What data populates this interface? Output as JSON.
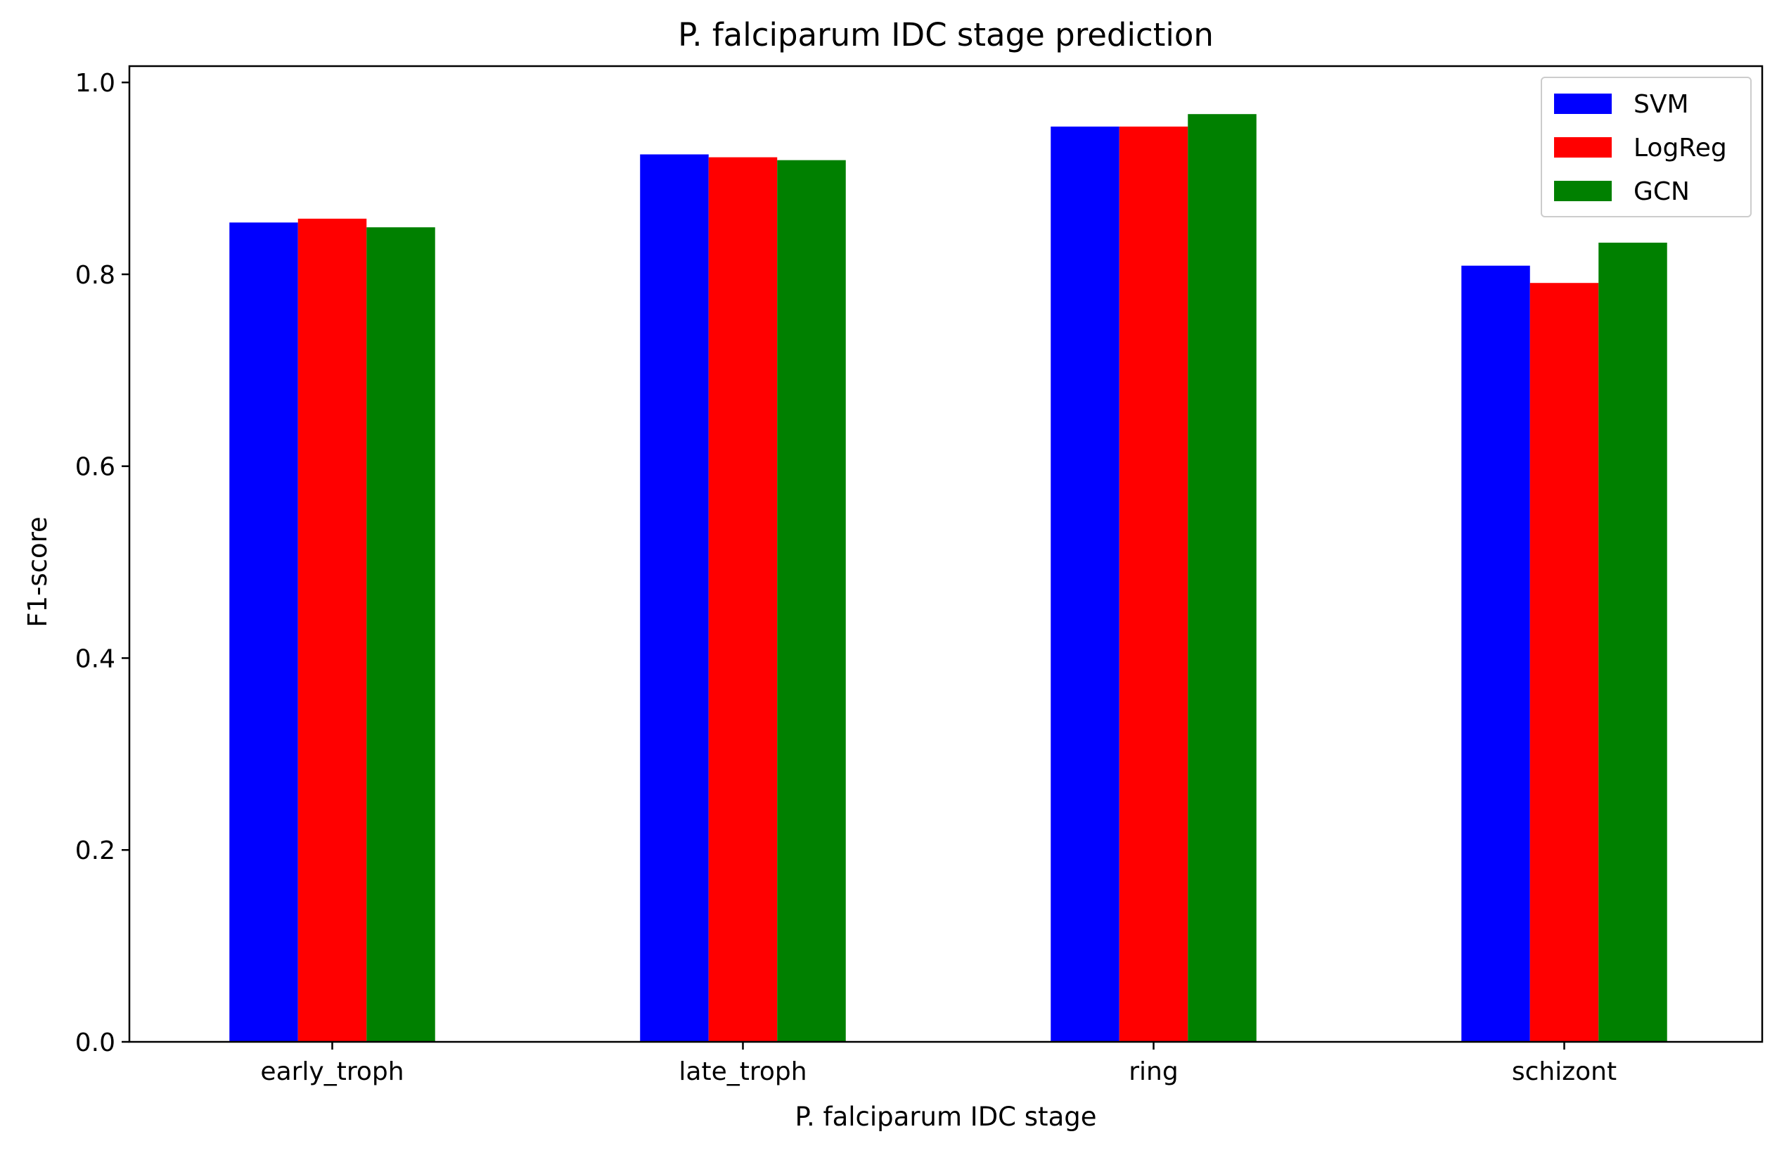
{
  "chart_data": {
    "type": "bar",
    "title": "P. falciparum IDC stage prediction",
    "xlabel": "P. falciparum IDC stage",
    "ylabel": "F1-score",
    "categories": [
      "early_troph",
      "late_troph",
      "ring",
      "schizont"
    ],
    "series": [
      {
        "name": "SVM",
        "color": "#0000ff",
        "values": [
          0.854,
          0.925,
          0.954,
          0.809
        ]
      },
      {
        "name": "LogReg",
        "color": "#ff0000",
        "values": [
          0.858,
          0.922,
          0.954,
          0.791
        ]
      },
      {
        "name": "GCN",
        "color": "#008000",
        "values": [
          0.849,
          0.919,
          0.967,
          0.833
        ]
      }
    ],
    "ylim": [
      0,
      1.017
    ],
    "yticks": [
      0.0,
      0.2,
      0.4,
      0.6,
      0.8,
      1.0
    ],
    "ytick_labels": [
      "0.0",
      "0.2",
      "0.4",
      "0.6",
      "0.8",
      "1.0"
    ],
    "grid": false,
    "legend_position": "top-right"
  }
}
